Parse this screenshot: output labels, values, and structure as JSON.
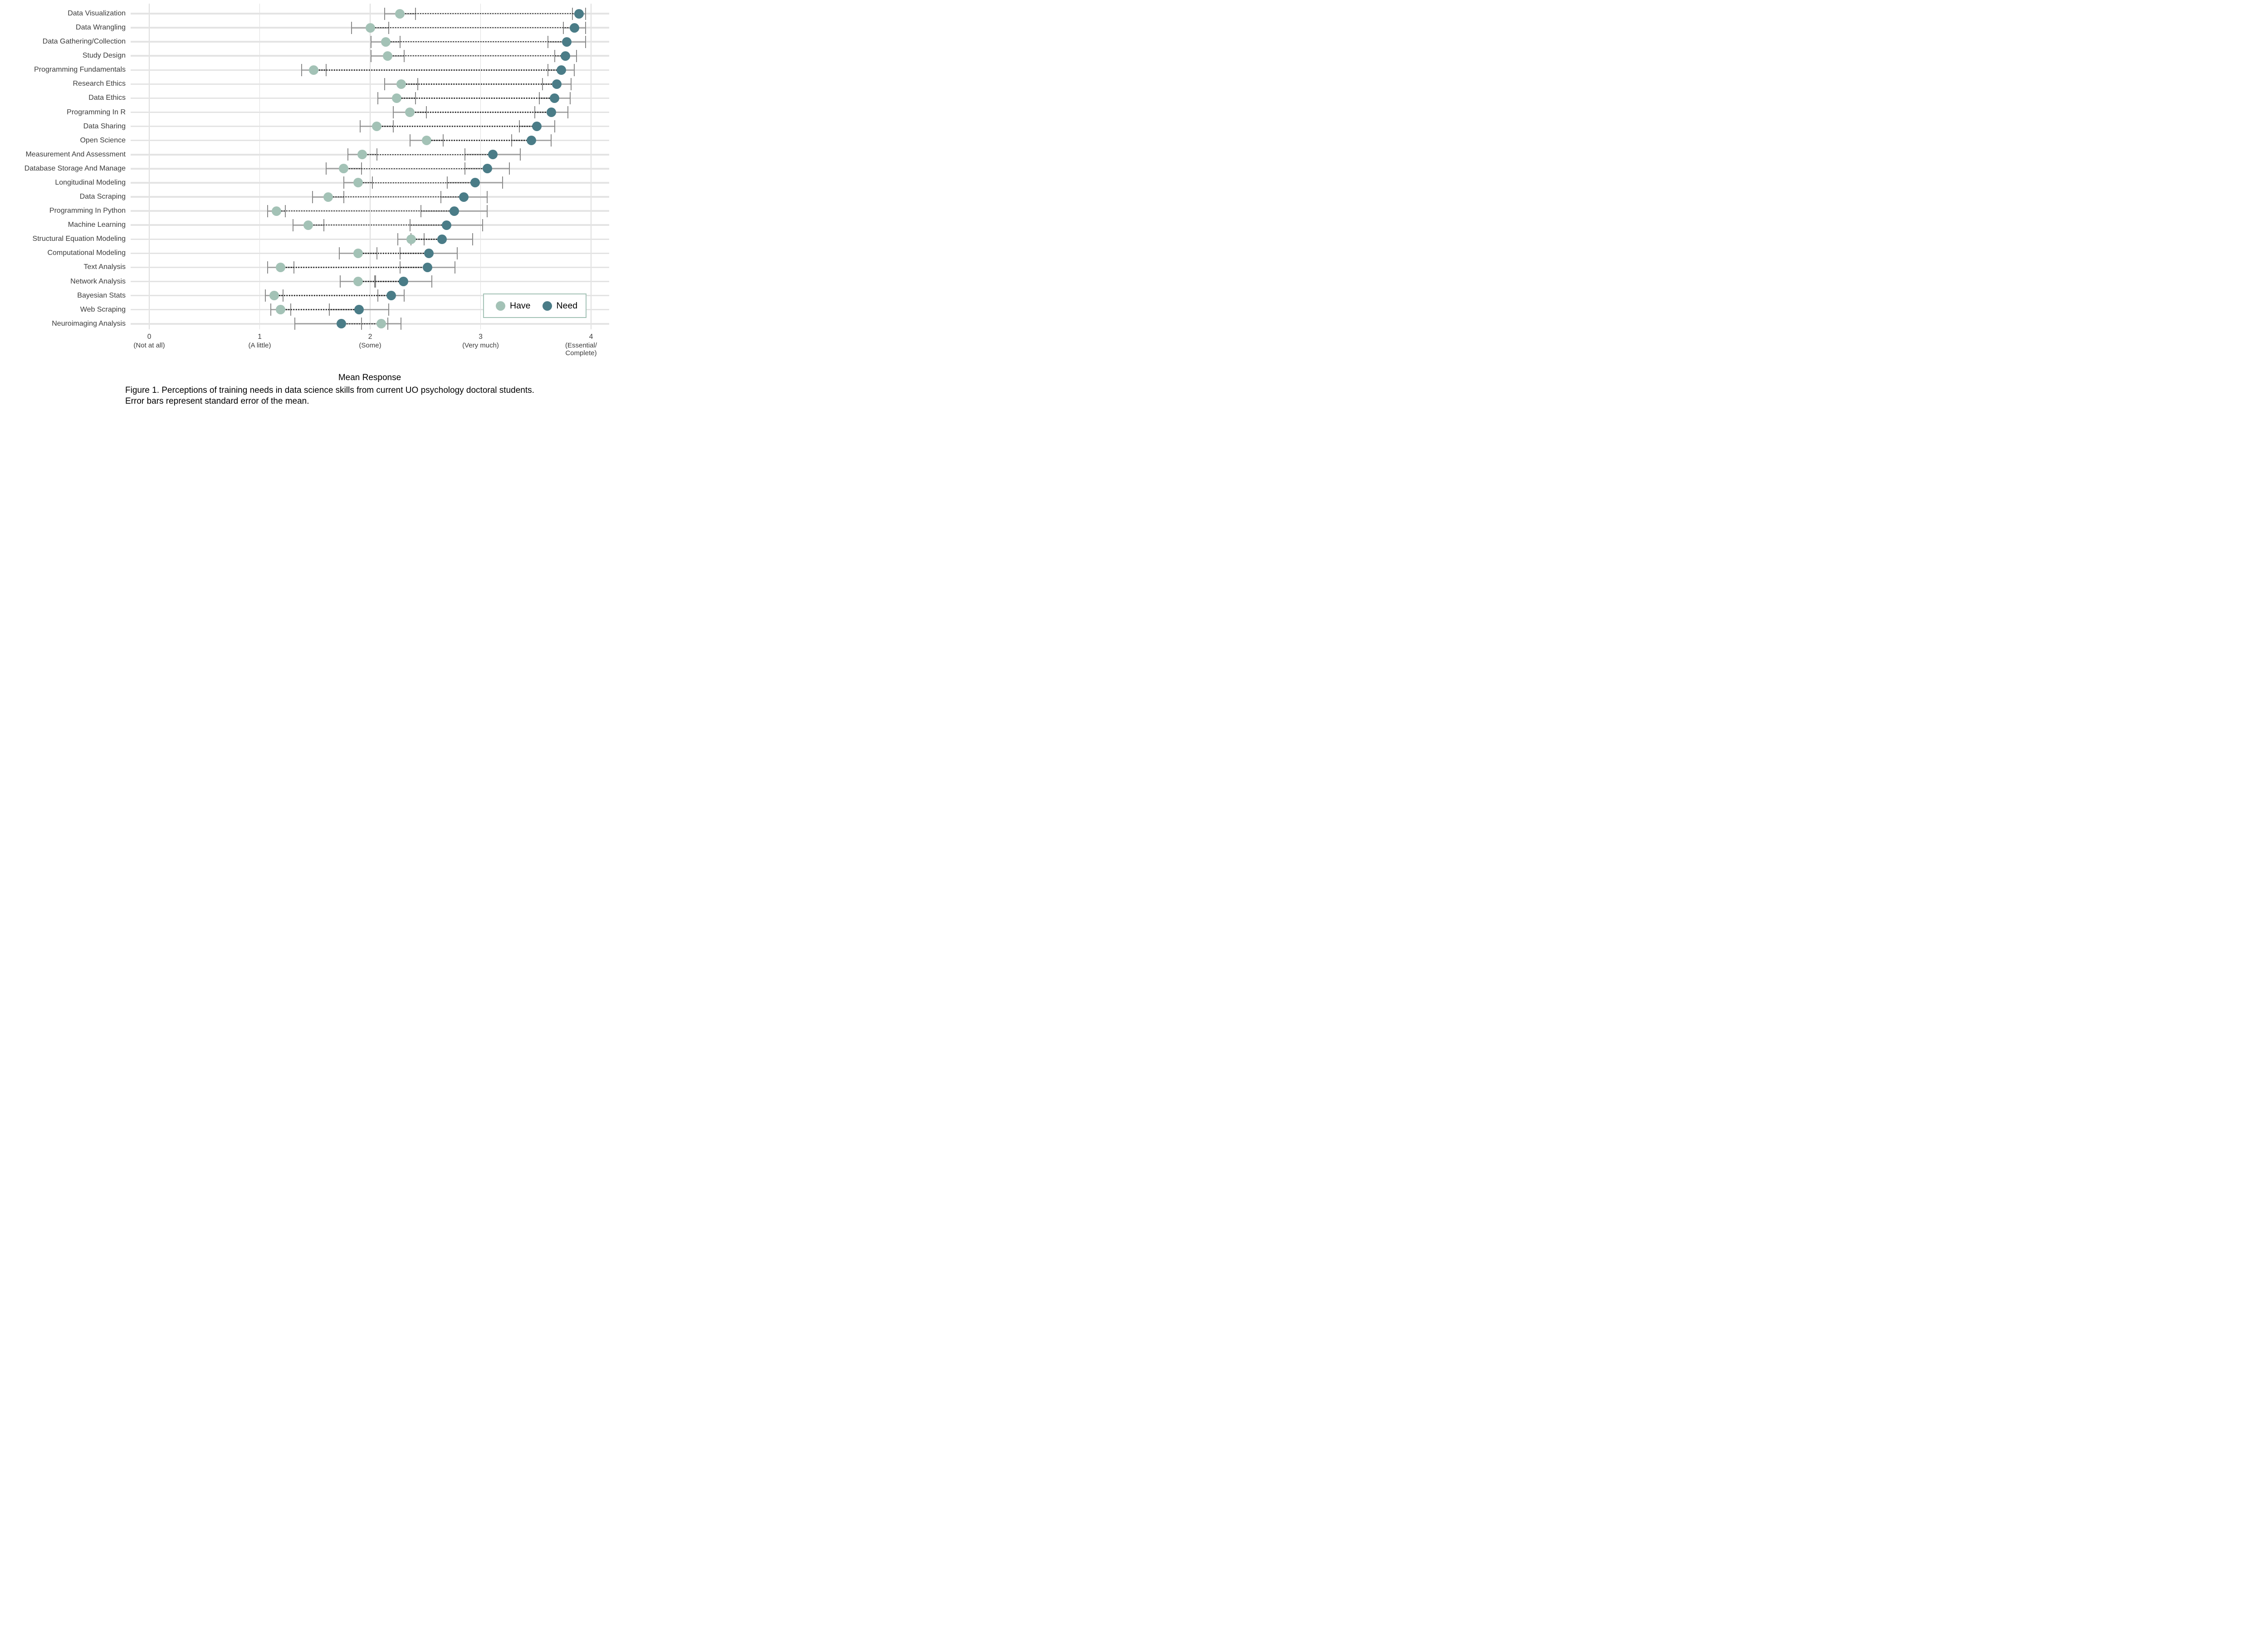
{
  "figure": {
    "x_axis_title": "Mean Response",
    "caption_lines": [
      "Figure 1. Perceptions of training needs in data science skills from current UO psychology doctoral students.",
      "Error bars represent standard error of the mean."
    ]
  },
  "legend": {
    "items": [
      {
        "label": "Have",
        "color": "#a3c2b6"
      },
      {
        "label": "Need",
        "color": "#4a7c87"
      }
    ],
    "border_color": "#a3c2b6",
    "position": "bottom-right-inside"
  },
  "colors": {
    "have": "#a3c2b6",
    "need": "#4a7c87",
    "category_gridline": "#e4e4e4",
    "x_gridline": "#dedede",
    "error_bar": "#8a8a8a",
    "connector": "#2a2a2a",
    "text": "#3b3b3b"
  },
  "chart_data": {
    "type": "scatter",
    "subtype": "dot-plot-with-error-bars",
    "orientation": "horizontal",
    "title": "",
    "xlabel": "Mean Response",
    "ylabel": "",
    "xlim": [
      -0.17,
      4.17
    ],
    "grid": "vertical major gridlines + one horizontal gridline per category",
    "legend_position": "bottom-right inside panel",
    "error_bars": "standard error of the mean",
    "x_ticks": [
      {
        "value": 0,
        "label": "0",
        "descriptor": [
          "(Not at all)"
        ]
      },
      {
        "value": 1,
        "label": "1",
        "descriptor": [
          "(A little)"
        ]
      },
      {
        "value": 2,
        "label": "2",
        "descriptor": [
          "(Some)"
        ]
      },
      {
        "value": 3,
        "label": "3",
        "descriptor": [
          "(Very much)"
        ]
      },
      {
        "value": 4,
        "label": "4",
        "descriptor": [
          "(Essential/",
          "Complete)"
        ]
      }
    ],
    "categories": [
      "Data Visualization",
      "Data Wrangling",
      "Data Gathering/Collection",
      "Study Design",
      "Programming Fundamentals",
      "Research Ethics",
      "Data Ethics",
      "Programming In R",
      "Data Sharing",
      "Open Science",
      "Measurement And Assessment",
      "Database Storage And Manage",
      "Longitudinal Modeling",
      "Data Scraping",
      "Programming In Python",
      "Machine Learning",
      "Structural Equation Modeling",
      "Computational Modeling",
      "Text Analysis",
      "Network Analysis",
      "Bayesian Stats",
      "Web Scraping",
      "Neuroimaging Analysis"
    ],
    "series": [
      {
        "name": "Have",
        "color": "#a3c2b6",
        "values": [
          2.27,
          2.0,
          2.14,
          2.16,
          1.49,
          2.28,
          2.24,
          2.36,
          2.06,
          2.51,
          1.93,
          1.76,
          1.89,
          1.62,
          1.15,
          1.44,
          2.37,
          1.89,
          1.19,
          1.89,
          1.13,
          1.19,
          2.1
        ],
        "se": [
          0.14,
          0.17,
          0.13,
          0.15,
          0.11,
          0.15,
          0.17,
          0.15,
          0.15,
          0.15,
          0.13,
          0.16,
          0.13,
          0.14,
          0.08,
          0.14,
          0.12,
          0.17,
          0.12,
          0.16,
          0.08,
          0.09,
          0.18
        ]
      },
      {
        "name": "Need",
        "color": "#4a7c87",
        "values": [
          3.89,
          3.85,
          3.78,
          3.77,
          3.73,
          3.69,
          3.67,
          3.64,
          3.51,
          3.46,
          3.11,
          3.06,
          2.95,
          2.85,
          2.76,
          2.69,
          2.65,
          2.53,
          2.52,
          2.3,
          2.19,
          1.9,
          1.74
        ],
        "se": [
          0.06,
          0.1,
          0.17,
          0.1,
          0.12,
          0.13,
          0.14,
          0.15,
          0.16,
          0.18,
          0.25,
          0.2,
          0.25,
          0.21,
          0.3,
          0.33,
          0.28,
          0.26,
          0.25,
          0.26,
          0.12,
          0.27,
          0.42
        ]
      }
    ]
  }
}
